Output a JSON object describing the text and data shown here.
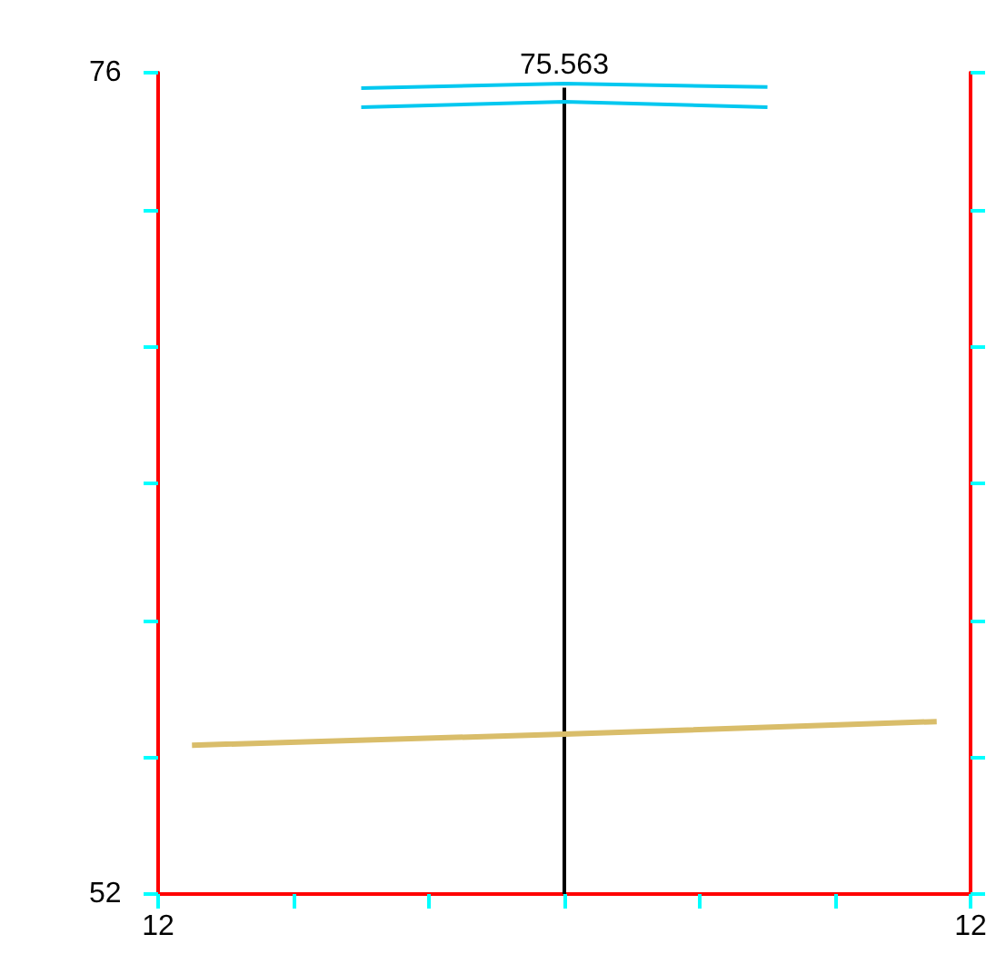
{
  "chart_data": {
    "type": "line",
    "categories": [
      "12",
      null,
      null,
      null,
      null,
      null,
      null,
      null,
      null,
      null,
      null,
      null,
      null,
      null,
      null,
      null,
      null,
      null,
      null,
      null,
      null,
      null,
      null,
      null,
      "12"
    ],
    "ylim": [
      52,
      76
    ],
    "yticks": [
      {
        "value": 52,
        "label": "52"
      },
      {
        "value": 56,
        "label": null
      },
      {
        "value": 60,
        "label": null
      },
      {
        "value": 64,
        "label": null
      },
      {
        "value": 68,
        "label": null
      },
      {
        "value": 72,
        "label": null
      },
      {
        "value": 76,
        "label": "76"
      }
    ],
    "series": [
      {
        "type": "bar",
        "color": "#000000",
        "values": [
          null,
          null,
          null,
          null,
          null,
          null,
          null,
          null,
          null,
          null,
          null,
          null,
          75.563,
          null,
          null,
          null,
          null,
          null,
          null,
          null,
          null,
          null,
          null,
          null,
          null
        ],
        "value_labels": [
          null,
          null,
          null,
          null,
          null,
          null,
          null,
          null,
          null,
          null,
          null,
          null,
          "75.563",
          null,
          null,
          null,
          null,
          null,
          null,
          null,
          null,
          null,
          null,
          null,
          null
        ]
      },
      {
        "color": "#00c8f0",
        "values": [
          null,
          null,
          null,
          null,
          null,
          null,
          75.55,
          null,
          null,
          null,
          null,
          null,
          75.68,
          null,
          null,
          null,
          null,
          null,
          75.58,
          null,
          null,
          null,
          null,
          null,
          null
        ]
      },
      {
        "color": "#00c8f0",
        "values": [
          null,
          null,
          null,
          null,
          null,
          null,
          74.99,
          null,
          null,
          null,
          null,
          null,
          75.15,
          null,
          null,
          null,
          null,
          null,
          74.99,
          null,
          null,
          null,
          null,
          null,
          null
        ]
      },
      {
        "color": "#d9bd6a",
        "values": [
          null,
          56.35,
          null,
          null,
          null,
          null,
          null,
          null,
          null,
          null,
          null,
          null,
          56.67,
          null,
          null,
          null,
          null,
          null,
          null,
          null,
          null,
          null,
          null,
          57.04,
          null
        ]
      }
    ],
    "grid": false,
    "marker": "none"
  }
}
